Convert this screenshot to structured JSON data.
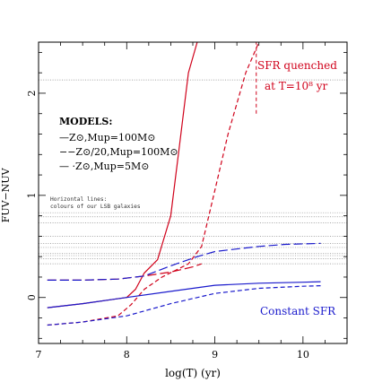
{
  "chart_data": {
    "type": "line",
    "title": "",
    "xlabel": "log(T) (yr)",
    "ylabel": "FUV−NUV",
    "xlim": [
      7,
      10.5
    ],
    "ylim": [
      -0.45,
      2.5
    ],
    "x_ticks": [
      7,
      8,
      9,
      10
    ],
    "x_tick_labels": [
      "7",
      "8",
      "9",
      "10"
    ],
    "y_ticks": [
      0,
      1,
      2
    ],
    "y_tick_labels": [
      "0",
      "1",
      "2"
    ],
    "grid": false,
    "legend_title": "MODELS:",
    "legend_entries": [
      {
        "label": "—Z⊙,Mup=100M⊙",
        "style": "solid",
        "color": "#000000"
      },
      {
        "label": "−−Z⊙/20,Mup=100M⊙",
        "style": "dashed",
        "color": "#000000"
      },
      {
        "label": "— ·Z⊙,Mup=5M⊙",
        "style": "long-dash",
        "color": "#000000"
      }
    ],
    "annotations": {
      "horizontal_lines_title": "Horizontal lines:",
      "horizontal_lines_text": "colours of our LSB galaxies",
      "sfr_quenched_line1": "SFR quenched",
      "sfr_quenched_line2": "at T=10⁸ yr",
      "constant_sfr": "Constant SFR"
    },
    "horizontal_lines": [
      2.13,
      0.83,
      0.79,
      0.73,
      0.6,
      0.53,
      0.49,
      0.43,
      0.41,
      0.38,
      0.33
    ],
    "quench_marker_x": 9.47,
    "colors": {
      "quenched": "#d0021b",
      "constant": "#1a1acc",
      "reference": "#888888",
      "axis": "#000000"
    },
    "series": [
      {
        "group": "quenched",
        "style": "solid",
        "x": [
          7.1,
          7.5,
          8.0,
          8.1,
          8.2,
          8.35,
          8.5,
          8.6,
          8.7,
          8.8
        ],
        "y": [
          -0.1,
          -0.06,
          0.0,
          0.08,
          0.24,
          0.37,
          0.8,
          1.5,
          2.2,
          2.5
        ]
      },
      {
        "group": "quenched",
        "style": "dashed",
        "x": [
          7.1,
          7.5,
          7.9,
          8.05,
          8.2,
          8.4,
          8.7,
          8.85,
          9.0,
          9.15,
          9.35,
          9.5
        ],
        "y": [
          -0.27,
          -0.24,
          -0.18,
          -0.07,
          0.08,
          0.2,
          0.33,
          0.5,
          1.05,
          1.6,
          2.2,
          2.5
        ]
      },
      {
        "group": "quenched",
        "style": "long-dash",
        "x": [
          7.1,
          7.5,
          7.9,
          8.2,
          8.5,
          8.65,
          8.75,
          8.85
        ],
        "y": [
          0.17,
          0.17,
          0.18,
          0.21,
          0.25,
          0.28,
          0.3,
          0.33
        ]
      },
      {
        "group": "constant",
        "style": "solid",
        "x": [
          7.1,
          7.5,
          8.0,
          8.5,
          9.0,
          9.5,
          10.0,
          10.2
        ],
        "y": [
          -0.1,
          -0.06,
          0.0,
          0.06,
          0.12,
          0.14,
          0.15,
          0.155
        ]
      },
      {
        "group": "constant",
        "style": "dashed",
        "x": [
          7.1,
          7.5,
          8.0,
          8.5,
          9.0,
          9.5,
          10.0,
          10.2
        ],
        "y": [
          -0.27,
          -0.24,
          -0.18,
          -0.06,
          0.04,
          0.09,
          0.11,
          0.115
        ]
      },
      {
        "group": "constant",
        "style": "long-dash",
        "x": [
          7.1,
          7.5,
          7.9,
          8.2,
          8.5,
          8.8,
          9.0,
          9.2,
          9.5,
          9.8,
          10.2
        ],
        "y": [
          0.17,
          0.17,
          0.18,
          0.21,
          0.31,
          0.4,
          0.45,
          0.47,
          0.5,
          0.52,
          0.53
        ]
      }
    ]
  }
}
